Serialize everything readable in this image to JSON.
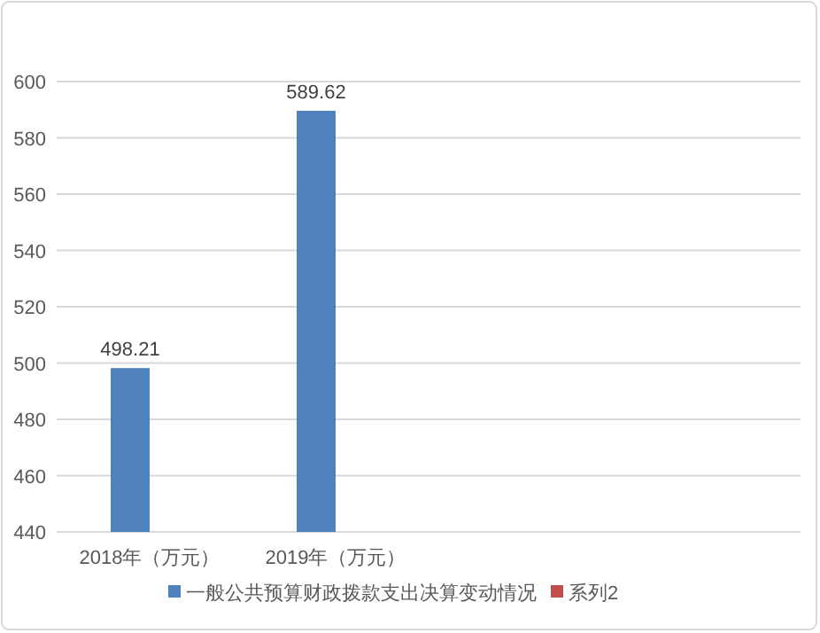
{
  "chart_data": {
    "type": "bar",
    "categories": [
      "2018年（万元）",
      "2019年（万元）",
      null,
      null
    ],
    "series": [
      {
        "name": "一般公共预算财政拨款支出决算变动情况",
        "color": "#4f81bd",
        "values": [
          498.21,
          589.62,
          null,
          null
        ]
      },
      {
        "name": "系列2",
        "color": "#c0504d",
        "values": [
          null,
          null,
          null,
          null
        ]
      }
    ],
    "ylim": [
      440,
      600
    ],
    "yticks": [
      440,
      460,
      480,
      500,
      520,
      540,
      560,
      580,
      600
    ],
    "grid": "y",
    "data_labels": true,
    "legend": "bottom"
  }
}
